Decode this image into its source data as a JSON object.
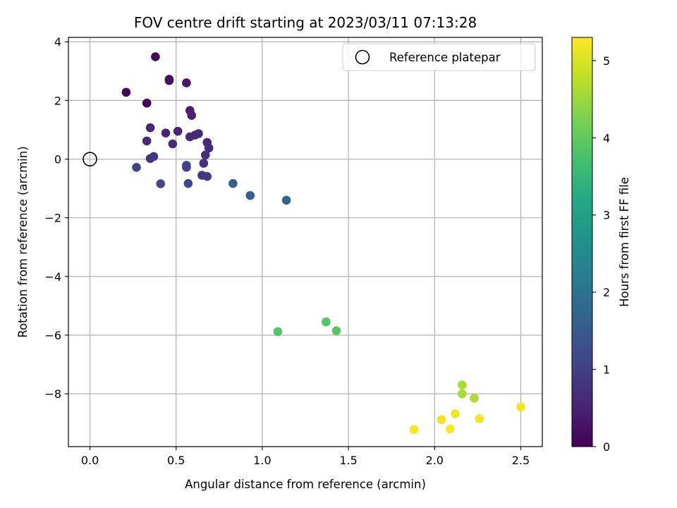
{
  "chart_data": {
    "type": "scatter",
    "title": "FOV centre drift starting at 2023/03/11 07:13:28",
    "xlabel": "Angular distance from reference (arcmin)",
    "ylabel": "Rotation from reference (arcmin)",
    "xlim": [
      -0.125,
      2.625
    ],
    "ylim": [
      -9.8,
      4.15
    ],
    "xticks": [
      0.0,
      0.5,
      1.0,
      1.5,
      2.0,
      2.5
    ],
    "xtick_labels": [
      "0.0",
      "0.5",
      "1.0",
      "1.5",
      "2.0",
      "2.5"
    ],
    "yticks": [
      -8,
      -6,
      -4,
      -2,
      0,
      2,
      4
    ],
    "ytick_labels": [
      "−8",
      "−6",
      "−4",
      "−2",
      "0",
      "2",
      "4"
    ],
    "grid": true,
    "legend": {
      "position": "upper right",
      "entries": [
        {
          "label": "Reference platepar",
          "marker": "hollow-circle",
          "x": 0.0,
          "y": 0.0
        }
      ]
    },
    "colorbar": {
      "label": "Hours from first FF file",
      "colormap": "viridis",
      "range": [
        0,
        5.3
      ],
      "ticks": [
        0,
        1,
        2,
        3,
        4,
        5
      ],
      "tick_labels": [
        "0",
        "1",
        "2",
        "3",
        "4",
        "5"
      ]
    },
    "points": [
      {
        "x": 0.38,
        "y": 3.49,
        "c": 0.12
      },
      {
        "x": 0.46,
        "y": 2.72,
        "c": 0.2
      },
      {
        "x": 0.46,
        "y": 2.68,
        "c": 0.22
      },
      {
        "x": 0.56,
        "y": 2.6,
        "c": 0.3
      },
      {
        "x": 0.21,
        "y": 2.28,
        "c": 0.08
      },
      {
        "x": 0.33,
        "y": 1.91,
        "c": 0.05
      },
      {
        "x": 0.58,
        "y": 1.66,
        "c": 0.45
      },
      {
        "x": 0.59,
        "y": 1.49,
        "c": 0.48
      },
      {
        "x": 0.35,
        "y": 1.07,
        "c": 0.58
      },
      {
        "x": 0.44,
        "y": 0.89,
        "c": 0.55
      },
      {
        "x": 0.51,
        "y": 0.95,
        "c": 0.6
      },
      {
        "x": 0.58,
        "y": 0.76,
        "c": 0.63
      },
      {
        "x": 0.61,
        "y": 0.82,
        "c": 0.6
      },
      {
        "x": 0.63,
        "y": 0.87,
        "c": 0.62
      },
      {
        "x": 0.33,
        "y": 0.62,
        "c": 0.65
      },
      {
        "x": 0.48,
        "y": 0.52,
        "c": 0.66
      },
      {
        "x": 0.68,
        "y": 0.57,
        "c": 0.63
      },
      {
        "x": 0.69,
        "y": 0.38,
        "c": 0.66
      },
      {
        "x": 0.67,
        "y": 0.14,
        "c": 0.72
      },
      {
        "x": 0.35,
        "y": 0.02,
        "c": 0.78
      },
      {
        "x": 0.37,
        "y": 0.09,
        "c": 0.85
      },
      {
        "x": 0.66,
        "y": -0.14,
        "c": 0.75
      },
      {
        "x": 0.27,
        "y": -0.28,
        "c": 1.05
      },
      {
        "x": 0.56,
        "y": -0.21,
        "c": 1.1
      },
      {
        "x": 0.56,
        "y": -0.28,
        "c": 1.08
      },
      {
        "x": 0.65,
        "y": -0.55,
        "c": 0.88
      },
      {
        "x": 0.68,
        "y": -0.59,
        "c": 0.85
      },
      {
        "x": 0.41,
        "y": -0.84,
        "c": 1.15
      },
      {
        "x": 0.57,
        "y": -0.83,
        "c": 1.15
      },
      {
        "x": 0.83,
        "y": -0.83,
        "c": 1.62
      },
      {
        "x": 0.93,
        "y": -1.24,
        "c": 1.65
      },
      {
        "x": 1.14,
        "y": -1.4,
        "c": 1.7
      },
      {
        "x": 1.09,
        "y": -5.88,
        "c": 3.85
      },
      {
        "x": 1.37,
        "y": -5.55,
        "c": 3.85
      },
      {
        "x": 1.43,
        "y": -5.85,
        "c": 3.88
      },
      {
        "x": 2.16,
        "y": -7.7,
        "c": 4.6
      },
      {
        "x": 2.16,
        "y": -8.0,
        "c": 4.62
      },
      {
        "x": 2.23,
        "y": -8.15,
        "c": 4.65
      },
      {
        "x": 2.5,
        "y": -8.45,
        "c": 5.2
      },
      {
        "x": 2.12,
        "y": -8.68,
        "c": 5.18
      },
      {
        "x": 2.04,
        "y": -8.88,
        "c": 5.2
      },
      {
        "x": 2.26,
        "y": -8.85,
        "c": 5.22
      },
      {
        "x": 1.88,
        "y": -9.22,
        "c": 5.25
      },
      {
        "x": 2.09,
        "y": -9.2,
        "c": 5.27
      }
    ]
  }
}
